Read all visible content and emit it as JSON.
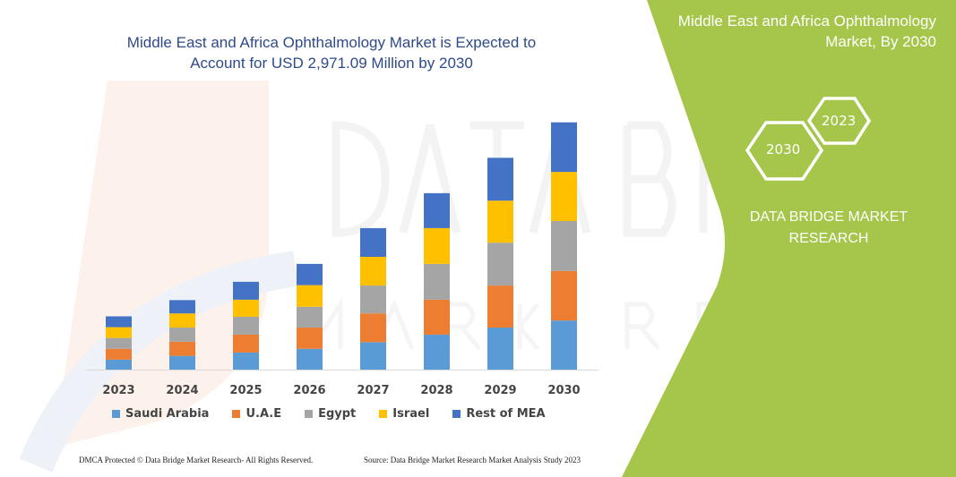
{
  "colors": {
    "panel_green": "#a5c64a",
    "title_blue": "#2e4a8a"
  },
  "title": "Middle East and Africa Ophthalmology Market is Expected to Account for USD 2,971.09 Million by 2030",
  "title_lines": [
    "Middle East and Africa Ophthalmology Market is Expected to",
    "Account for USD 2,971.09 Million by 2030"
  ],
  "right_panel": {
    "title_lines": [
      "Middle East and Africa Ophthalmology",
      "Market, By 2030"
    ],
    "hex_2030": "2030",
    "hex_2023": "2023",
    "brand_lines": [
      "DATA BRIDGE MARKET",
      "RESEARCH"
    ]
  },
  "watermark": "DATA BRIDGE MARKET RESEARCH",
  "footer": {
    "left": "DMCA Protected © Data Bridge Market Research-  All Rights Reserved.",
    "right": "Source: Data Bridge Market Research  Market Analysis Study 2023"
  },
  "chart_data": {
    "type": "bar",
    "stacked": true,
    "categories": [
      "2023",
      "2024",
      "2025",
      "2026",
      "2027",
      "2028",
      "2029",
      "2030"
    ],
    "ylim": [
      0,
      3000
    ],
    "grid": false,
    "y_axis_visible": false,
    "legend_position": "bottom",
    "series": [
      {
        "name": "Saudi Arabia",
        "color": "#5b9bd5",
        "values": [
          120,
          165,
          205,
          250,
          330,
          420,
          505,
          590
        ]
      },
      {
        "name": "U.A.E",
        "color": "#ed7d31",
        "values": [
          130,
          170,
          215,
          255,
          345,
          420,
          505,
          595
        ]
      },
      {
        "name": "Egypt",
        "color": "#a5a5a5",
        "values": [
          130,
          170,
          215,
          250,
          335,
          430,
          515,
          600
        ]
      },
      {
        "name": "Israel",
        "color": "#ffc000",
        "values": [
          130,
          170,
          205,
          260,
          345,
          430,
          505,
          590
        ]
      },
      {
        "name": "Rest of MEA",
        "color": "#4472c4",
        "values": [
          130,
          160,
          215,
          255,
          345,
          420,
          515,
          596
        ]
      }
    ]
  }
}
